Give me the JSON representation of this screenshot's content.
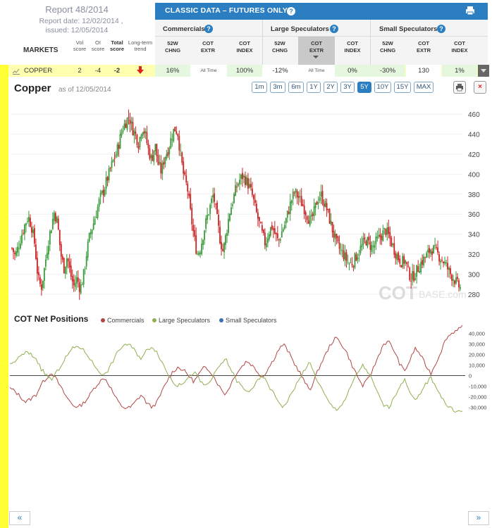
{
  "report": {
    "title": "Report 48/2014",
    "date_line": "Report date: 12/02/2014 ,",
    "issued_line": "issued: 12/05/2014"
  },
  "table_header": {
    "markets": "MARKETS",
    "vol_score": [
      "Vol",
      "score"
    ],
    "oi_score": [
      "OI",
      "score"
    ],
    "total_score": [
      "Total",
      "score"
    ],
    "long_term": [
      "Long-term",
      "trend"
    ]
  },
  "classic": {
    "title": "CLASSIC DATA – FUTURES ONLY",
    "groups": [
      {
        "label": "Commercials",
        "cols": [
          [
            "52W",
            "CHNG"
          ],
          [
            "COT",
            "EXTR"
          ],
          [
            "COT",
            "INDEX"
          ]
        ]
      },
      {
        "label": "Large Speculators",
        "cols": [
          [
            "52W",
            "CHNG"
          ],
          [
            "COT",
            "EXTR"
          ],
          [
            "COT",
            "INDEX"
          ]
        ]
      },
      {
        "label": "Small Speculators",
        "cols": [
          [
            "52W",
            "CHNG"
          ],
          [
            "COT",
            "EXTR"
          ],
          [
            "COT",
            "INDEX"
          ]
        ]
      }
    ]
  },
  "row": {
    "market": "COPPER",
    "vol": "2",
    "oi": "-4",
    "total": "-2",
    "comm_52w": "16%",
    "comm_extr": "All Time",
    "comm_index": "100%",
    "ls_52w": "-12%",
    "ls_extr": "All Time",
    "ls_index": "0%",
    "ss_52w": "-30%",
    "ss_extr": "130",
    "ss_index": "1%"
  },
  "chart": {
    "title": "Copper",
    "asof": "as of 12/05/2014",
    "ranges": [
      "1m",
      "3m",
      "6m",
      "1Y",
      "2Y",
      "3Y",
      "5Y",
      "10Y",
      "15Y",
      "MAX"
    ],
    "active_range": "5Y",
    "watermark_a": "COT",
    "watermark_b": "BASE.com",
    "colors": {
      "up": "#3a9a3a",
      "down": "#cc2222",
      "commercials": "#b24646",
      "large": "#8fb050",
      "small": "#3e6fb5"
    }
  },
  "net": {
    "title": "COT Net Positions",
    "legend": [
      "Commercials",
      "Large Speculators",
      "Small Speculators"
    ]
  },
  "nav": {
    "prev": "«",
    "next": "»"
  },
  "chart_data": [
    {
      "type": "candlestick",
      "title": "Copper",
      "ylim": [
        270,
        470
      ],
      "yticks": [
        280,
        300,
        320,
        340,
        360,
        380,
        400,
        420,
        440,
        460
      ],
      "close_path": [
        326,
        318,
        328,
        340,
        350,
        358,
        348,
        330,
        296,
        286,
        306,
        330,
        346,
        362,
        352,
        320,
        306,
        318,
        300,
        288,
        296,
        285,
        298,
        322,
        340,
        350,
        362,
        375,
        382,
        392,
        402,
        412,
        420,
        432,
        446,
        452,
        458,
        446,
        440,
        430,
        448,
        440,
        424,
        414,
        430,
        410,
        402,
        418,
        424,
        436,
        446,
        442,
        416,
        396,
        386,
        360,
        338,
        320,
        326,
        342,
        356,
        368,
        380,
        358,
        336,
        322,
        342,
        362,
        374,
        386,
        394,
        398,
        394,
        388,
        378,
        364,
        352,
        340,
        330,
        342,
        348,
        340,
        332,
        342,
        350,
        362,
        374,
        382,
        378,
        372,
        366,
        358,
        352,
        362,
        374,
        380,
        372,
        364,
        352,
        340,
        330,
        324,
        320,
        314,
        310,
        312,
        318,
        324,
        330,
        334,
        330,
        326,
        332,
        336,
        340,
        344,
        338,
        330,
        322,
        316,
        312,
        314,
        302,
        296,
        300,
        306,
        312,
        316,
        320,
        326,
        324,
        320,
        316,
        312,
        306,
        300,
        296,
        290,
        286
      ]
    },
    {
      "type": "line",
      "title": "COT Net Positions",
      "ylim": [
        -35000,
        45000
      ],
      "yticks": [
        40000,
        30000,
        20000,
        10000,
        0,
        -10000,
        -20000,
        -30000
      ],
      "series": [
        {
          "name": "Commercials",
          "values": [
            -12000,
            -15000,
            -20000,
            -25000,
            -22000,
            -18000,
            -8000,
            -2000,
            3000,
            -5000,
            -14000,
            -22000,
            -28000,
            -30000,
            -26000,
            -20000,
            -12000,
            -6000,
            -2000,
            -10000,
            -20000,
            -28000,
            -31000,
            -30000,
            -24000,
            -18000,
            -26000,
            -30000,
            -25000,
            -14000,
            -4000,
            4000,
            8000,
            5000,
            0,
            -6000,
            2000,
            8000,
            5000,
            -3000,
            -12000,
            -18000,
            -8000,
            2000,
            8000,
            14000,
            10000,
            4000,
            -2000,
            6000,
            14000,
            24000,
            30000,
            22000,
            12000,
            4000,
            -6000,
            -14000,
            -2000,
            10000,
            20000,
            30000,
            36000,
            30000,
            22000,
            10000,
            0,
            -10000,
            -4000,
            6000,
            18000,
            30000,
            32000,
            24000,
            12000,
            4000,
            14000,
            26000,
            20000,
            10000,
            2000,
            12000,
            24000,
            36000,
            40000,
            44000,
            46000
          ]
        },
        {
          "name": "Large Speculators",
          "values": [
            10000,
            14000,
            18000,
            22000,
            20000,
            16000,
            6000,
            0,
            -4000,
            4000,
            12000,
            20000,
            26000,
            28000,
            24000,
            18000,
            10000,
            4000,
            0,
            8000,
            18000,
            26000,
            30000,
            28000,
            22000,
            16000,
            24000,
            28000,
            22000,
            12000,
            2000,
            -6000,
            -10000,
            -6000,
            -2000,
            4000,
            -4000,
            -10000,
            -6000,
            2000,
            10000,
            16000,
            6000,
            -4000,
            -10000,
            -16000,
            -12000,
            -6000,
            0,
            -8000,
            -16000,
            -24000,
            -30000,
            -22000,
            -12000,
            -4000,
            6000,
            12000,
            0,
            -10000,
            -20000,
            -28000,
            -32000,
            -28000,
            -20000,
            -8000,
            2000,
            10000,
            4000,
            -6000,
            -18000,
            -28000,
            -30000,
            -22000,
            -10000,
            -4000,
            -14000,
            -24000,
            -18000,
            -8000,
            -2000,
            -10000,
            -20000,
            -28000,
            -32000,
            -34000,
            -34000
          ]
        }
      ]
    }
  ]
}
